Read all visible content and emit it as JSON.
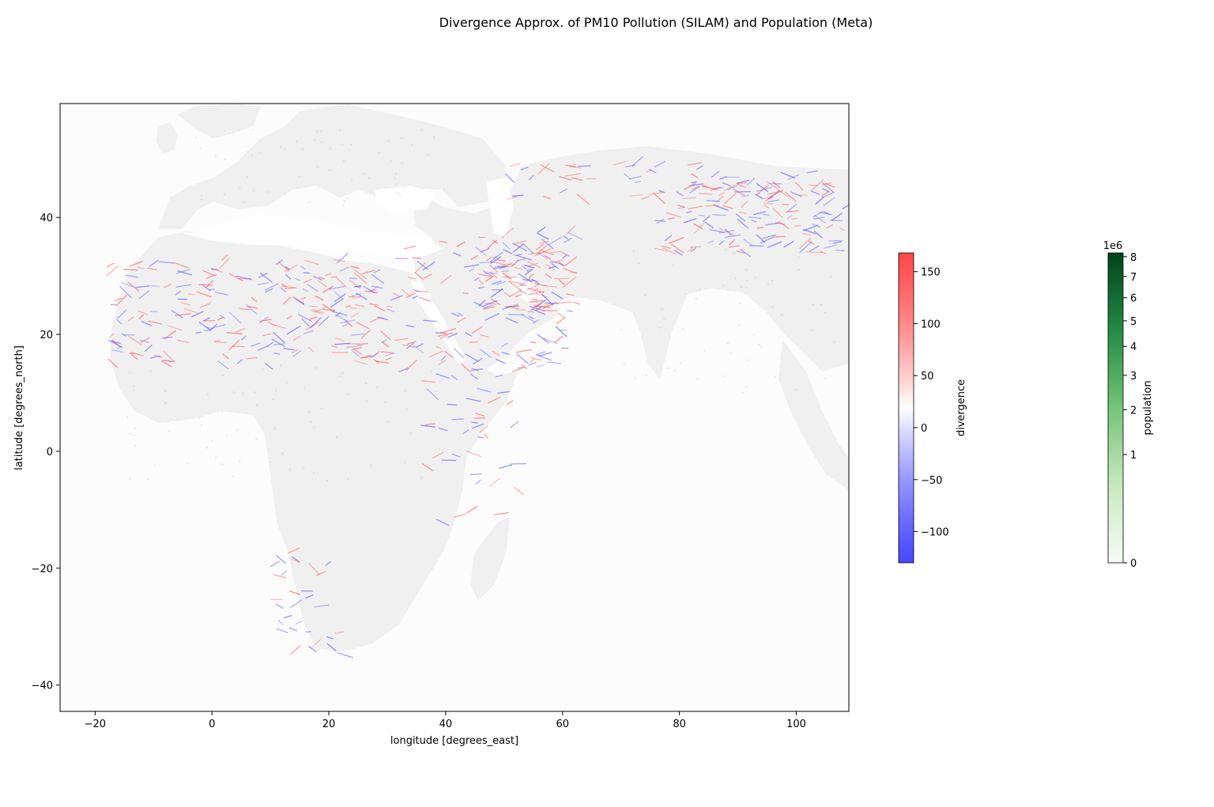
{
  "chart_data": {
    "type": "heatmap",
    "title": "Divergence Approx. of PM10 Pollution (SILAM) and Population (Meta)",
    "xlabel": "longitude [degrees_east]",
    "ylabel": "latitude [degrees_north]",
    "xlim": [
      -26,
      109
    ],
    "ylim": [
      -44.5,
      59.5
    ],
    "xticks": [
      -20,
      0,
      20,
      40,
      60,
      80,
      100
    ],
    "xtick_labels": [
      "−20",
      "0",
      "20",
      "40",
      "60",
      "80",
      "100"
    ],
    "yticks": [
      -40,
      -20,
      0,
      20,
      40
    ],
    "ytick_labels": [
      "−40",
      "−20",
      "0",
      "20",
      "40"
    ],
    "grid": false,
    "layers": [
      {
        "name": "divergence",
        "colormap": "bwr",
        "colors": [
          "#0000ff",
          "#ffffff",
          "#ff0000"
        ],
        "vmin": -130,
        "vmax": 168,
        "ticks": [
          -100,
          -50,
          0,
          50,
          100,
          150
        ],
        "tick_labels": [
          "−100",
          "−50",
          "0",
          "50",
          "100",
          "150"
        ],
        "label": "divergence"
      },
      {
        "name": "population",
        "colormap": "Greens",
        "colors": [
          "#f7fcf5",
          "#c7e9c0",
          "#74c476",
          "#238b45",
          "#00441b"
        ],
        "norm": "power",
        "vmin": 0,
        "vmax": 8.2,
        "scale_label": "1e6",
        "ticks": [
          0,
          1,
          2,
          3,
          4,
          5,
          6,
          7,
          8
        ],
        "tick_labels": [
          "0",
          "1",
          "2",
          "3",
          "4",
          "5",
          "6",
          "7",
          "8"
        ],
        "label": "population"
      }
    ],
    "land_color": "#f0f0f0",
    "ocean_color": "#fcfcfc"
  }
}
